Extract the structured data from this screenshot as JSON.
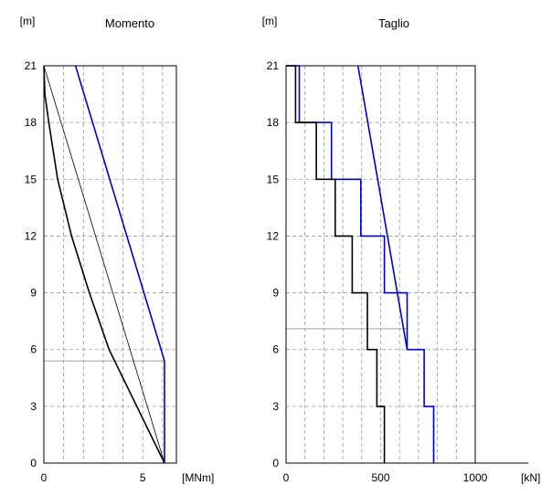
{
  "chart_data": [
    {
      "type": "line",
      "title": "Momento",
      "ylabel": "[m]",
      "xlabel": "[MNm]",
      "xlim": [
        0,
        6.7
      ],
      "ylim": [
        0,
        21
      ],
      "xticks": [
        0,
        5
      ],
      "yticks": [
        0,
        3,
        6,
        9,
        12,
        15,
        18,
        21
      ],
      "grid": true,
      "grid_x": [
        1,
        2,
        3,
        4,
        5,
        6
      ],
      "hlines": [
        {
          "y": 5.4,
          "x_from": 0,
          "x_to": 6.1
        }
      ],
      "series": [
        {
          "color": "#0000cc",
          "width": 1.6,
          "points": [
            [
              1.6,
              21
            ],
            [
              6.1,
              5.4
            ],
            [
              6.1,
              0
            ]
          ]
        },
        {
          "color": "#000000",
          "width": 0.8,
          "points": [
            [
              0,
              21
            ],
            [
              6.1,
              0
            ]
          ]
        },
        {
          "color": "#000000",
          "width": 1.6,
          "points": [
            [
              0,
              21
            ],
            [
              0.05,
              19.5
            ],
            [
              0.25,
              18
            ],
            [
              0.7,
              15
            ],
            [
              1.4,
              12
            ],
            [
              2.3,
              9
            ],
            [
              3.3,
              6
            ],
            [
              4.7,
              3
            ],
            [
              6.1,
              0
            ]
          ]
        }
      ]
    },
    {
      "type": "line",
      "title": "Taglio",
      "ylabel": "[m]",
      "xlabel": "[kN]",
      "xlim": [
        0,
        1000
      ],
      "ylim": [
        0,
        21
      ],
      "xticks": [
        0,
        500,
        1000
      ],
      "yticks": [
        0,
        3,
        6,
        9,
        12,
        15,
        18,
        21
      ],
      "grid": true,
      "grid_x": [
        100,
        200,
        300,
        400,
        500,
        600,
        700,
        800,
        900
      ],
      "hlines": [
        {
          "y": 7.1,
          "x_from": 0,
          "x_to": 640
        }
      ],
      "series": [
        {
          "color": "#0000cc",
          "width": 1.6,
          "points": [
            [
              380,
              21
            ],
            [
              640,
              6
            ]
          ]
        },
        {
          "color": "#0000cc",
          "width": 1.6,
          "points": [
            [
              0,
              21
            ],
            [
              70,
              21
            ],
            [
              70,
              18
            ],
            [
              240,
              18
            ],
            [
              240,
              15
            ],
            [
              395,
              15
            ],
            [
              395,
              12
            ],
            [
              520,
              12
            ],
            [
              520,
              9
            ],
            [
              640,
              9
            ],
            [
              640,
              6
            ],
            [
              730,
              6
            ],
            [
              730,
              3
            ],
            [
              780,
              3
            ],
            [
              780,
              0
            ]
          ]
        },
        {
          "color": "#000000",
          "width": 1.6,
          "points": [
            [
              0,
              21
            ],
            [
              50,
              21
            ],
            [
              50,
              18
            ],
            [
              160,
              18
            ],
            [
              160,
              15
            ],
            [
              260,
              15
            ],
            [
              260,
              12
            ],
            [
              350,
              12
            ],
            [
              350,
              9
            ],
            [
              430,
              9
            ],
            [
              430,
              6
            ],
            [
              480,
              6
            ],
            [
              480,
              3
            ],
            [
              520,
              3
            ],
            [
              520,
              0
            ]
          ]
        }
      ]
    }
  ]
}
